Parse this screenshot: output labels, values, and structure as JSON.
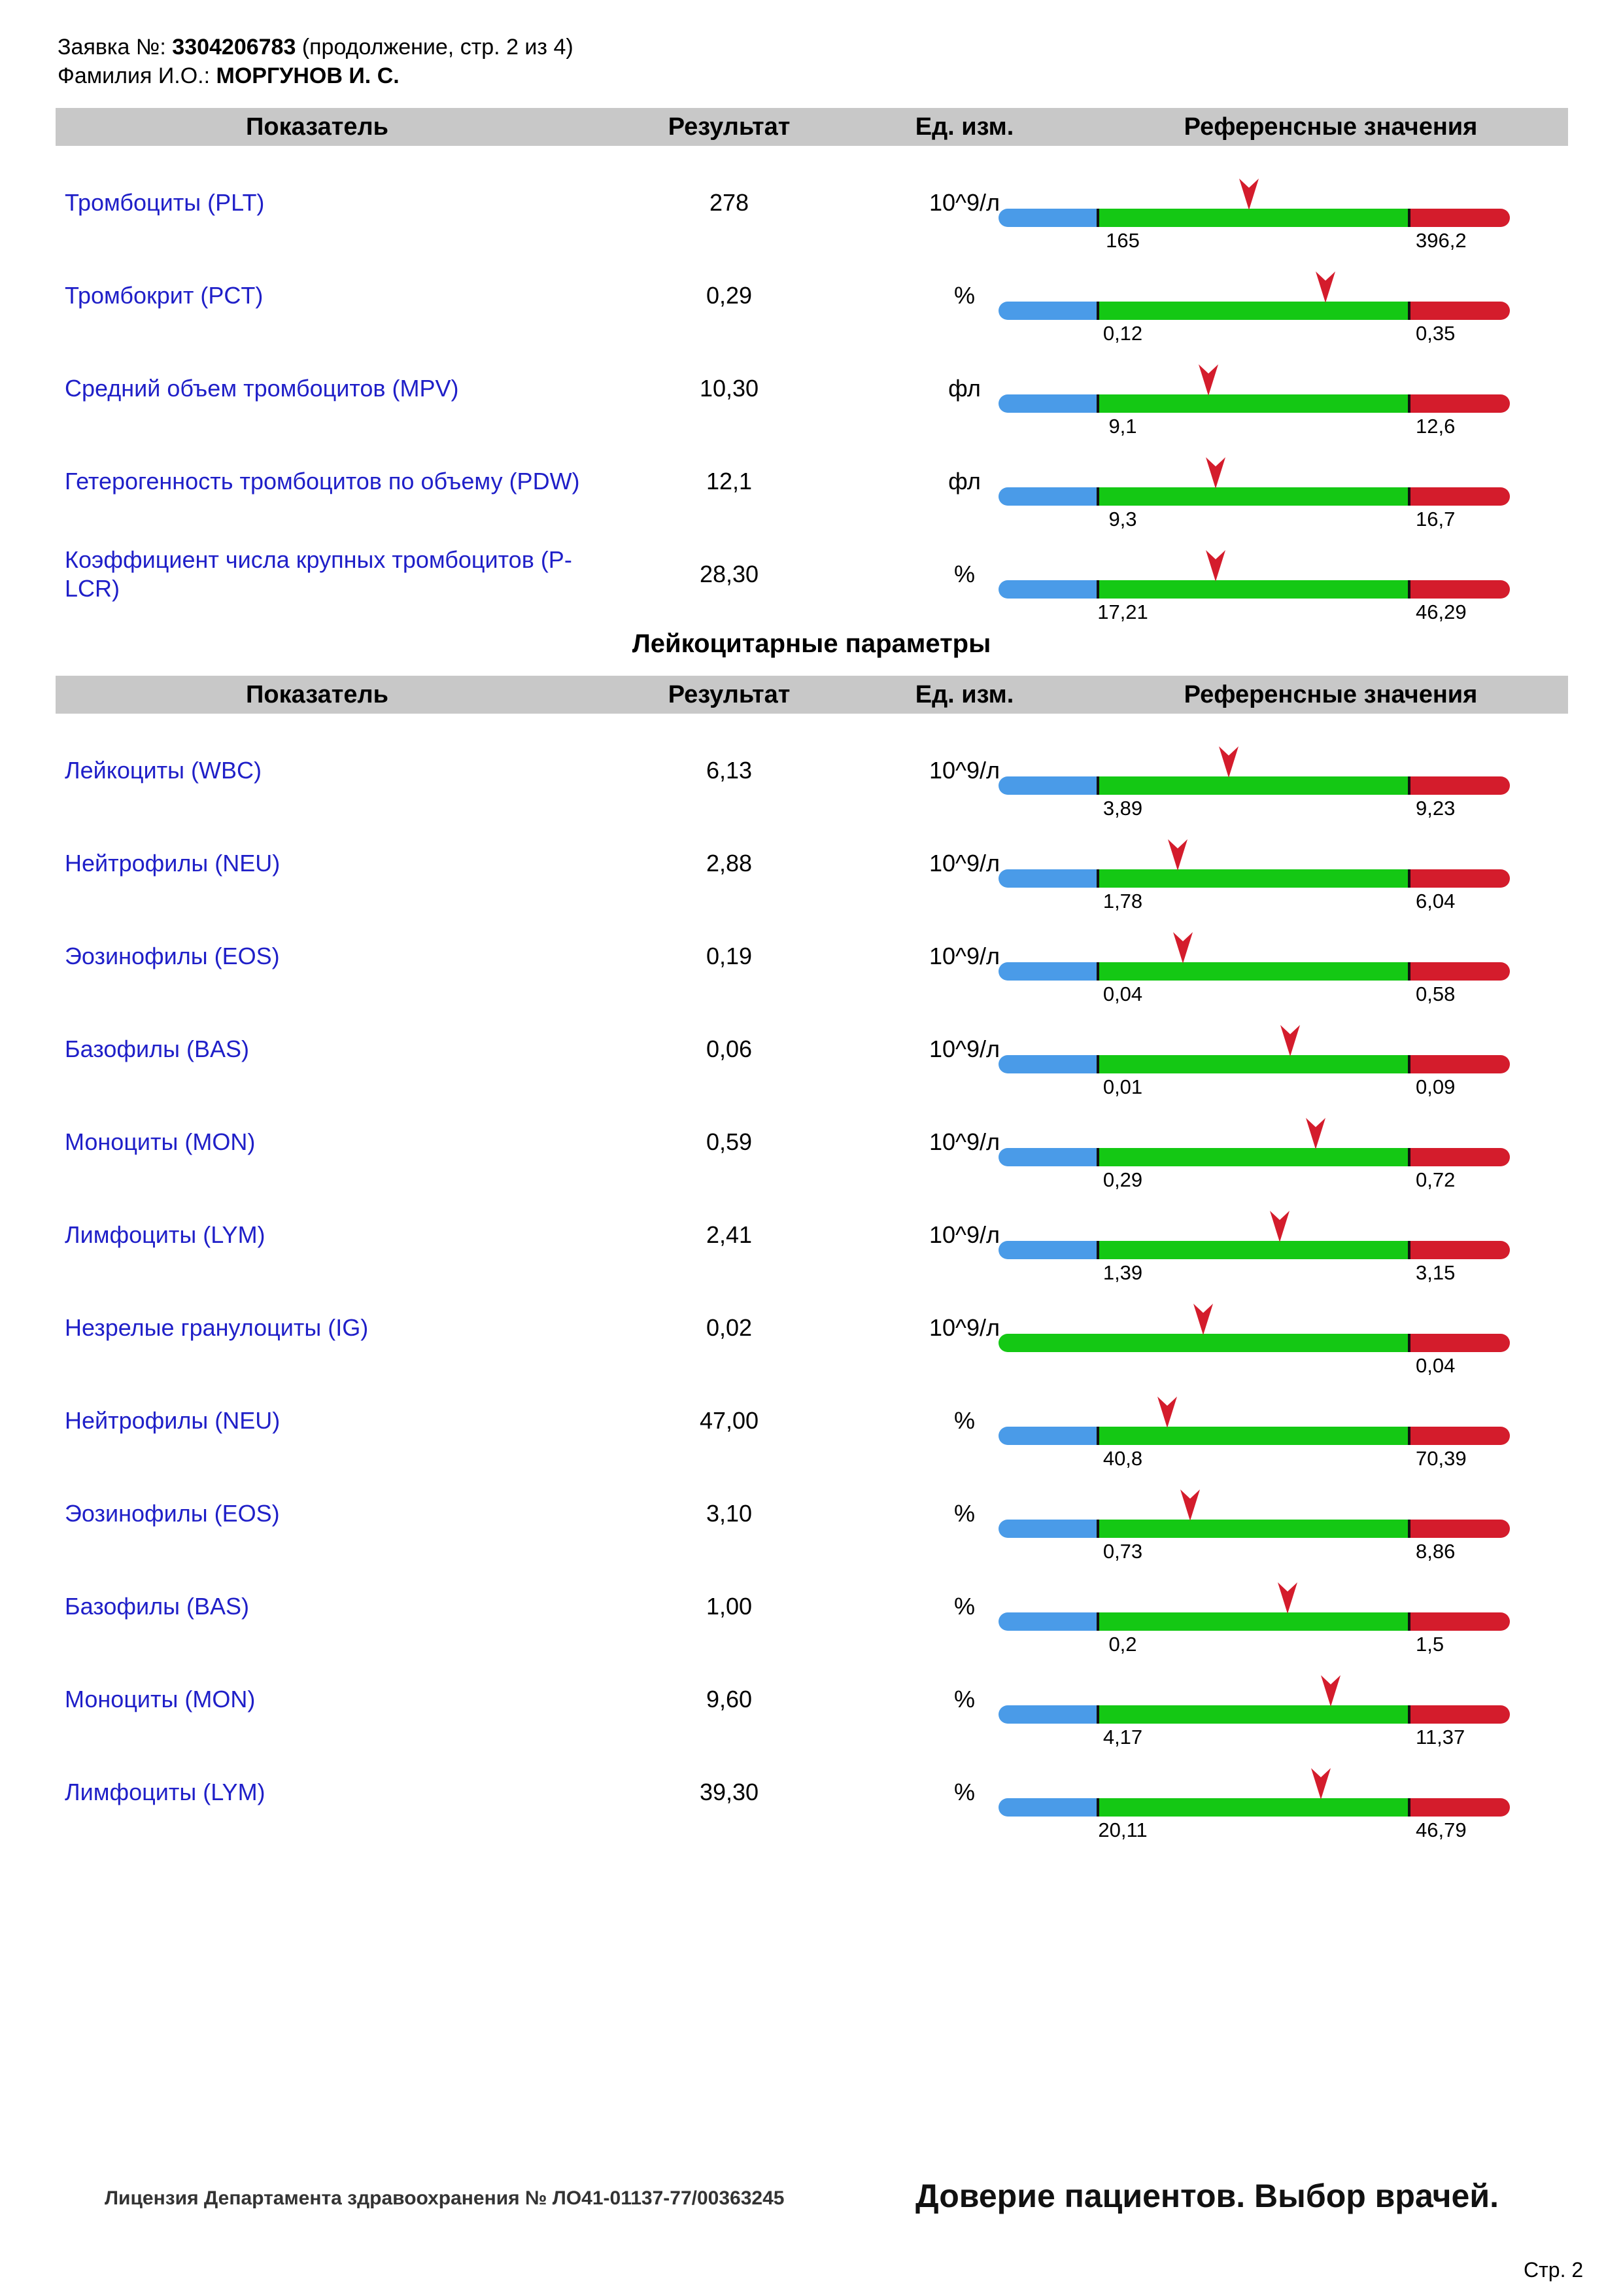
{
  "header": {
    "order_label": "Заявка №:",
    "order_number": "3304206783",
    "order_suffix": "(продолжение, стр. 2 из 4)",
    "name_label": "Фамилия И.О.:",
    "patient_name": "МОРГУНОВ И. С."
  },
  "table_header": {
    "indicator": "Показатель",
    "result": "Результат",
    "unit": "Ед. изм.",
    "reference": "Референсные значения"
  },
  "sections": [
    {
      "title": "",
      "rows": [
        {
          "name": "Тромбоциты (PLT)",
          "result": "278",
          "unit": "10^9/л",
          "low": "165",
          "high": "396,2",
          "marker_fraction": 0.49
        },
        {
          "name": "Тромбокрит (PCT)",
          "result": "0,29",
          "unit": "%",
          "low": "0,12",
          "high": "0,35",
          "marker_fraction": 0.64
        },
        {
          "name": "Средний объем тромбоцитов (MPV)",
          "result": "10,30",
          "unit": "фл",
          "low": "9,1",
          "high": "12,6",
          "marker_fraction": 0.41
        },
        {
          "name": "Гетерогенность тромбоцитов по объему (PDW)",
          "result": "12,1",
          "unit": "фл",
          "low": "9,3",
          "high": "16,7",
          "marker_fraction": 0.425
        },
        {
          "name": "Коэффициент числа крупных тромбоцитов (P-LCR)",
          "result": "28,30",
          "unit": "%",
          "low": "17,21",
          "high": "46,29",
          "marker_fraction": 0.425
        }
      ]
    },
    {
      "title": "Лейкоцитарные параметры",
      "rows": [
        {
          "name": "Лейкоциты (WBC)",
          "result": "6,13",
          "unit": "10^9/л",
          "low": "3,89",
          "high": "9,23",
          "marker_fraction": 0.45
        },
        {
          "name": "Нейтрофилы (NEU)",
          "result": "2,88",
          "unit": "10^9/л",
          "low": "1,78",
          "high": "6,04",
          "marker_fraction": 0.35
        },
        {
          "name": "Эозинофилы (EOS)",
          "result": "0,19",
          "unit": "10^9/л",
          "low": "0,04",
          "high": "0,58",
          "marker_fraction": 0.36
        },
        {
          "name": "Базофилы (BAS)",
          "result": "0,06",
          "unit": "10^9/л",
          "low": "0,01",
          "high": "0,09",
          "marker_fraction": 0.57
        },
        {
          "name": "Моноциты (MON)",
          "result": "0,59",
          "unit": "10^9/л",
          "low": "0,29",
          "high": "0,72",
          "marker_fraction": 0.62
        },
        {
          "name": "Лимфоциты (LYM)",
          "result": "2,41",
          "unit": "10^9/л",
          "low": "1,39",
          "high": "3,15",
          "marker_fraction": 0.55
        },
        {
          "name": "Незрелые гранулоциты (IG)",
          "result": "0,02",
          "unit": "10^9/л",
          "low": "",
          "high": "0,04",
          "marker_fraction": 0.4,
          "no_low": true
        },
        {
          "name": "Нейтрофилы (NEU)",
          "result": "47,00",
          "unit": "%",
          "low": "40,8",
          "high": "70,39",
          "marker_fraction": 0.33
        },
        {
          "name": "Эозинофилы (EOS)",
          "result": "3,10",
          "unit": "%",
          "low": "0,73",
          "high": "8,86",
          "marker_fraction": 0.375
        },
        {
          "name": "Базофилы (BAS)",
          "result": "1,00",
          "unit": "%",
          "low": "0,2",
          "high": "1,5",
          "marker_fraction": 0.565
        },
        {
          "name": "Моноциты (MON)",
          "result": "9,60",
          "unit": "%",
          "low": "4,17",
          "high": "11,37",
          "marker_fraction": 0.65
        },
        {
          "name": "Лимфоциты (LYM)",
          "result": "39,30",
          "unit": "%",
          "low": "20,11",
          "high": "46,79",
          "marker_fraction": 0.63
        }
      ]
    }
  ],
  "colors": {
    "low": "#4a9be8",
    "normal": "#14c814",
    "high": "#d41c2c",
    "marker": "#d41c2c",
    "link": "#1f1fc8"
  },
  "footer": {
    "license": "Лицензия Департамента здравоохранения № ЛО41-01137-77/00363245",
    "slogan": "Доверие пациентов. Выбор врачей.",
    "page": "Стр. 2"
  }
}
